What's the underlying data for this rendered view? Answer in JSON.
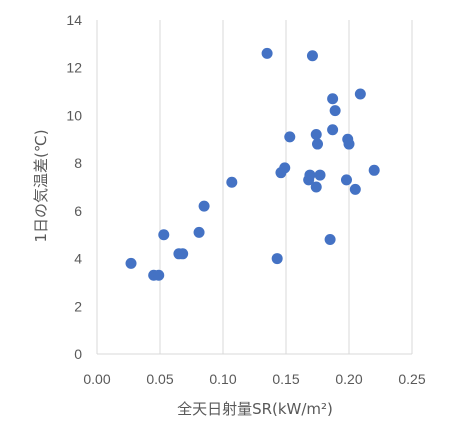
{
  "chart_data": {
    "type": "scatter",
    "xlabel": "全天日射量SR(kW/m²)",
    "ylabel": "1日の気温差(℃)",
    "xlim": [
      0,
      0.25
    ],
    "ylim": [
      0,
      14
    ],
    "xticks": [
      "0.00",
      "0.05",
      "0.10",
      "0.15",
      "0.20",
      "0.25"
    ],
    "yticks": [
      "0",
      "2",
      "4",
      "6",
      "8",
      "10",
      "12",
      "14"
    ],
    "grid": "vertical",
    "marker_color": "#4472c4",
    "points": [
      [
        0.027,
        3.8
      ],
      [
        0.045,
        3.3
      ],
      [
        0.049,
        3.3
      ],
      [
        0.053,
        5.0
      ],
      [
        0.065,
        4.2
      ],
      [
        0.068,
        4.2
      ],
      [
        0.081,
        5.1
      ],
      [
        0.085,
        6.2
      ],
      [
        0.107,
        7.2
      ],
      [
        0.135,
        12.6
      ],
      [
        0.143,
        4.0
      ],
      [
        0.146,
        7.6
      ],
      [
        0.149,
        7.8
      ],
      [
        0.153,
        9.1
      ],
      [
        0.168,
        7.3
      ],
      [
        0.169,
        7.5
      ],
      [
        0.171,
        12.5
      ],
      [
        0.174,
        7.0
      ],
      [
        0.174,
        9.2
      ],
      [
        0.175,
        8.8
      ],
      [
        0.177,
        7.5
      ],
      [
        0.185,
        4.8
      ],
      [
        0.187,
        9.4
      ],
      [
        0.187,
        10.7
      ],
      [
        0.189,
        10.2
      ],
      [
        0.198,
        7.3
      ],
      [
        0.199,
        9.0
      ],
      [
        0.2,
        8.8
      ],
      [
        0.205,
        6.9
      ],
      [
        0.209,
        10.9
      ],
      [
        0.22,
        7.7
      ]
    ]
  }
}
